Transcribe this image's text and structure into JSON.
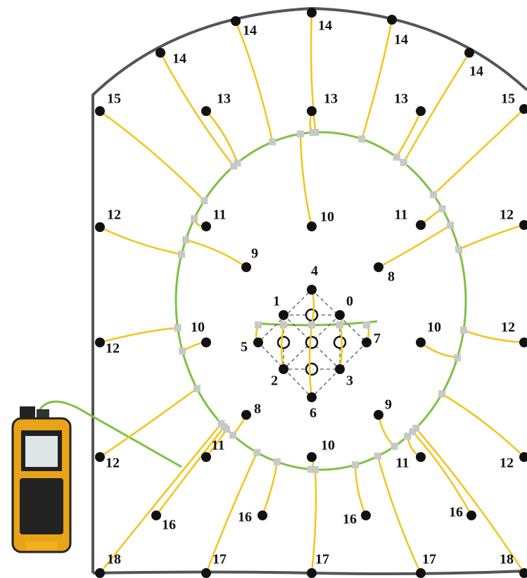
{
  "sensors": [
    {
      "label": "14"
    },
    {
      "label": "14"
    },
    {
      "label": "14"
    },
    {
      "label": "14"
    },
    {
      "label": "14"
    },
    {
      "label": "15"
    },
    {
      "label": "15"
    },
    {
      "label": "13"
    },
    {
      "label": "13"
    },
    {
      "label": "13"
    },
    {
      "label": "12"
    },
    {
      "label": "12"
    },
    {
      "label": "11"
    },
    {
      "label": "11"
    },
    {
      "label": "10"
    },
    {
      "label": "9"
    },
    {
      "label": "8"
    },
    {
      "label": "4"
    },
    {
      "label": "1"
    },
    {
      "label": "0"
    },
    {
      "label": "5"
    },
    {
      "label": "7"
    },
    {
      "label": "2"
    },
    {
      "label": "3"
    },
    {
      "label": "6"
    },
    {
      "label": "10"
    },
    {
      "label": "10"
    },
    {
      "label": "12"
    },
    {
      "label": "12"
    },
    {
      "label": "8"
    },
    {
      "label": "9"
    },
    {
      "label": "11"
    },
    {
      "label": "11"
    },
    {
      "label": "10"
    },
    {
      "label": "12"
    },
    {
      "label": "12"
    },
    {
      "label": "16"
    },
    {
      "label": "16"
    },
    {
      "label": "16"
    },
    {
      "label": "16"
    },
    {
      "label": "18"
    },
    {
      "label": "18"
    },
    {
      "label": "17"
    },
    {
      "label": "17"
    },
    {
      "label": "17"
    }
  ]
}
